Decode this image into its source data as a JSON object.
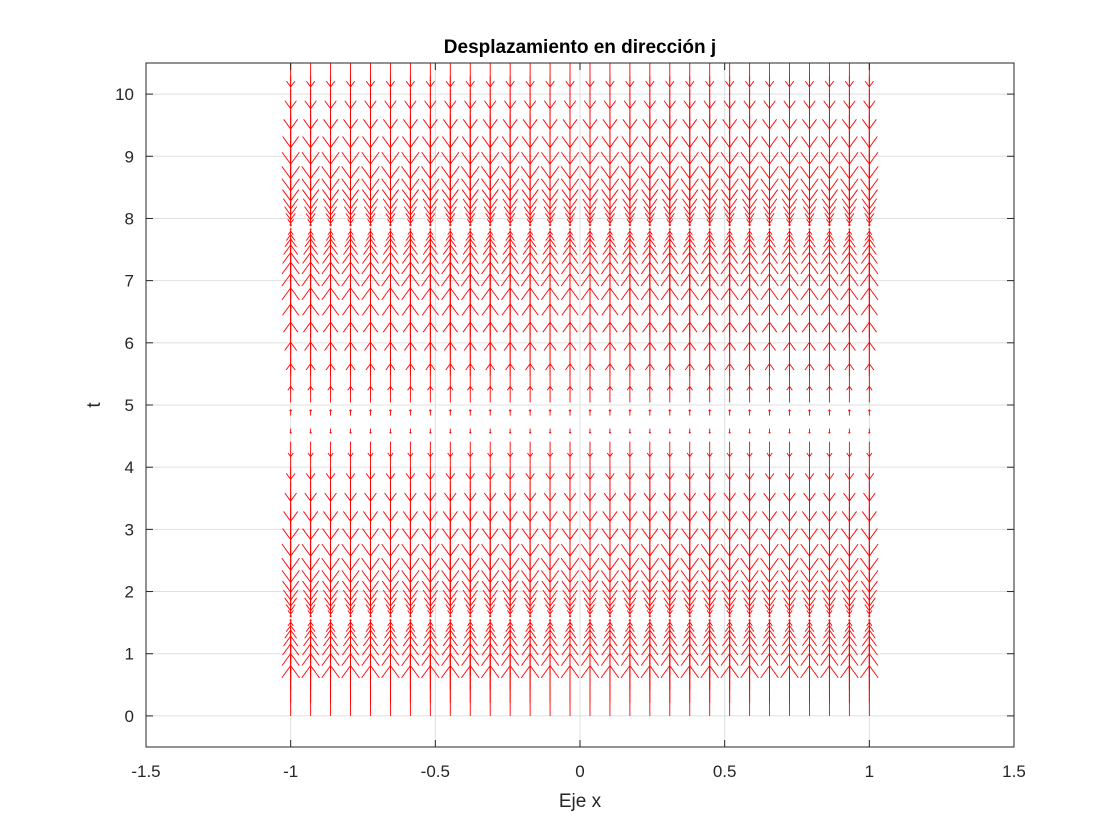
{
  "chart_data": {
    "type": "quiver",
    "title": "Desplazamiento en dirección j",
    "xlabel": "Eje x",
    "ylabel": "t",
    "xlim": [
      -1.5,
      1.5
    ],
    "ylim": [
      -0.5,
      10.5
    ],
    "xticks": [
      -1.5,
      -1,
      -0.5,
      0,
      0.5,
      1,
      1.5
    ],
    "xtick_labels": [
      "-1.5",
      "-1",
      "-0.5",
      "0",
      "0.5",
      "1",
      "1.5"
    ],
    "yticks": [
      0,
      1,
      2,
      3,
      4,
      5,
      6,
      7,
      8,
      9,
      10
    ],
    "ytick_labels": [
      "0",
      "1",
      "2",
      "3",
      "4",
      "5",
      "6",
      "7",
      "8",
      "9",
      "10"
    ],
    "grid": true,
    "color": "#ff0000",
    "x_grid": {
      "start": -1,
      "stop": 1,
      "count": 30
    },
    "t_grid": {
      "start": 0,
      "stop": 10.5,
      "count": 51
    },
    "displacement": {
      "u": 0,
      "v": "cos(t)",
      "arrow_scale": 0.6
    }
  }
}
